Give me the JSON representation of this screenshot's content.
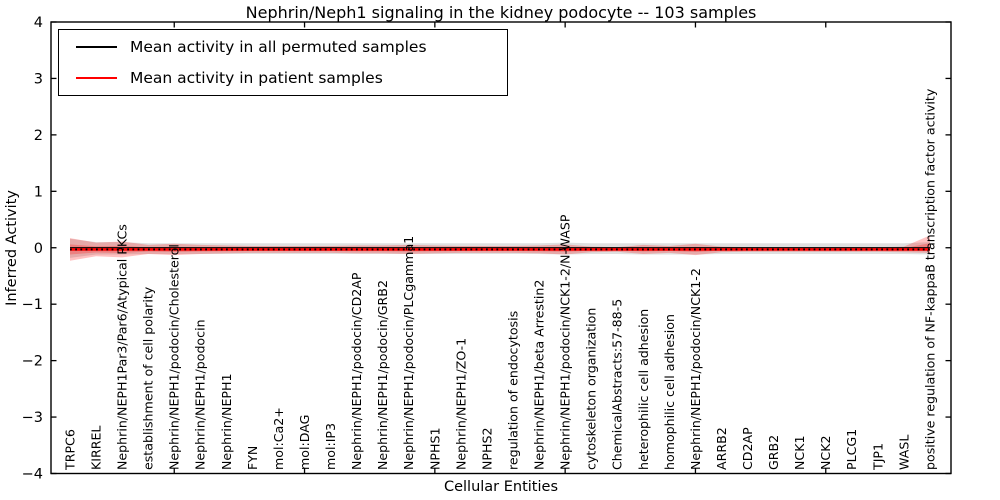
{
  "figure": {
    "title": "Nephrin/Neph1 signaling in the kidney podocyte -- 103 samples",
    "xlabel": "Cellular Entities",
    "ylabel": "Inferred Activity"
  },
  "legend": {
    "position": "upper left",
    "entries": [
      {
        "label": "Mean activity in all permuted samples",
        "color": "#000000"
      },
      {
        "label": "Mean activity in patient samples",
        "color": "#ff0000"
      }
    ]
  },
  "chart_data": {
    "type": "line",
    "title": "Nephrin/Neph1 signaling in the kidney podocyte -- 103 samples",
    "xlabel": "Cellular Entities",
    "ylabel": "Inferred Activity",
    "ylim": [
      -4,
      4
    ],
    "yticks": [
      4,
      3,
      2,
      1,
      0,
      -1,
      -2,
      -3,
      -4
    ],
    "xtick_indices": [
      4,
      9,
      14,
      19,
      24,
      29
    ],
    "grid": false,
    "legend_position": "upper left",
    "categories": [
      "TRPC6",
      "KIRREL",
      "Nephrin/NEPH1Par3/Par6/Atypical PKCs",
      "establishment of cell polarity",
      "Nephrin/NEPH1/podocin/Cholesterol",
      "Nephrin/NEPH1/podocin",
      "Nephrin/NEPH1",
      "FYN",
      "mol:Ca2+",
      "mol:DAG",
      "mol:IP3",
      "Nephrin/NEPH1/podocin/CD2AP",
      "Nephrin/NEPH1/podocin/GRB2",
      "Nephrin/NEPH1/podocin/PLCgamma1",
      "NPHS1",
      "Nephrin/NEPH1/ZO-1",
      "NPHS2",
      "regulation of endocytosis",
      "Nephrin/NEPH1/beta Arrestin2",
      "Nephrin/NEPH1/podocin/NCK1-2/N-WASP",
      "cytoskeleton organization",
      "ChemicalAbstracts:57-88-5",
      "heterophilic cell adhesion",
      "homophilic cell adhesion",
      "Nephrin/NEPH1/podocin/NCK1-2",
      "ARRB2",
      "CD2AP",
      "GRB2",
      "NCK1",
      "NCK2",
      "PLCG1",
      "TJP1",
      "WASL",
      "positive regulation of NF-kappaB transcription factor activity"
    ],
    "series": [
      {
        "name": "Mean activity in all permuted samples",
        "color": "#000000",
        "line_width": 1.3,
        "band_color": "rgba(110,110,110,0.22)",
        "values": [
          0,
          0,
          0,
          0,
          0,
          0,
          0,
          0,
          0,
          0,
          0,
          0,
          0,
          0,
          0,
          0,
          0,
          0,
          0,
          0,
          0,
          0,
          0,
          0,
          0,
          0,
          0,
          0,
          0,
          0,
          0,
          0,
          0,
          0
        ],
        "band_upper": [
          0.16,
          0.1,
          0.1,
          0.08,
          0.08,
          0.08,
          0.08,
          0.08,
          0.08,
          0.08,
          0.08,
          0.08,
          0.08,
          0.08,
          0.08,
          0.08,
          0.08,
          0.08,
          0.08,
          0.09,
          0.08,
          0.08,
          0.08,
          0.08,
          0.08,
          0.08,
          0.08,
          0.08,
          0.08,
          0.08,
          0.08,
          0.08,
          0.08,
          0.1
        ],
        "band_lower": [
          -0.18,
          -0.12,
          -0.12,
          -0.11,
          -0.11,
          -0.11,
          -0.11,
          -0.11,
          -0.11,
          -0.11,
          -0.11,
          -0.11,
          -0.11,
          -0.11,
          -0.11,
          -0.11,
          -0.11,
          -0.11,
          -0.11,
          -0.12,
          -0.11,
          -0.11,
          -0.12,
          -0.12,
          -0.12,
          -0.11,
          -0.11,
          -0.11,
          -0.11,
          -0.11,
          -0.11,
          -0.11,
          -0.11,
          -0.12
        ]
      },
      {
        "name": "Mean activity in patient samples",
        "color": "#ff0000",
        "line_width": 2.6,
        "band_color": "rgba(255,0,0,0.24)",
        "values": [
          -0.03,
          -0.03,
          -0.03,
          -0.03,
          -0.03,
          -0.03,
          -0.03,
          -0.03,
          -0.03,
          -0.03,
          -0.03,
          -0.03,
          -0.03,
          -0.03,
          -0.03,
          -0.03,
          -0.03,
          -0.03,
          -0.03,
          -0.03,
          -0.03,
          -0.03,
          -0.03,
          -0.03,
          -0.03,
          -0.03,
          -0.03,
          -0.03,
          -0.03,
          -0.03,
          -0.03,
          -0.03,
          -0.03,
          -0.03
        ],
        "band_upper": [
          0.17,
          0.09,
          0.11,
          0.05,
          0.07,
          0.05,
          0.04,
          0.03,
          0.03,
          0.03,
          0.03,
          0.04,
          0.04,
          0.05,
          0.04,
          0.03,
          0.03,
          0.03,
          0.04,
          0.06,
          0.02,
          0.01,
          0.05,
          0.03,
          0.07,
          0.02,
          0.01,
          0.01,
          0.01,
          0.01,
          0.01,
          0.01,
          0.02,
          0.22
        ],
        "band_lower": [
          -0.23,
          -0.15,
          -0.17,
          -0.11,
          -0.13,
          -0.11,
          -0.1,
          -0.09,
          -0.09,
          -0.09,
          -0.09,
          -0.1,
          -0.1,
          -0.11,
          -0.1,
          -0.09,
          -0.09,
          -0.09,
          -0.1,
          -0.12,
          -0.08,
          -0.07,
          -0.11,
          -0.09,
          -0.13,
          -0.08,
          -0.07,
          -0.07,
          -0.07,
          -0.07,
          -0.07,
          -0.07,
          -0.08,
          -0.09
        ],
        "marker_overlay_color": "#000000"
      }
    ]
  }
}
